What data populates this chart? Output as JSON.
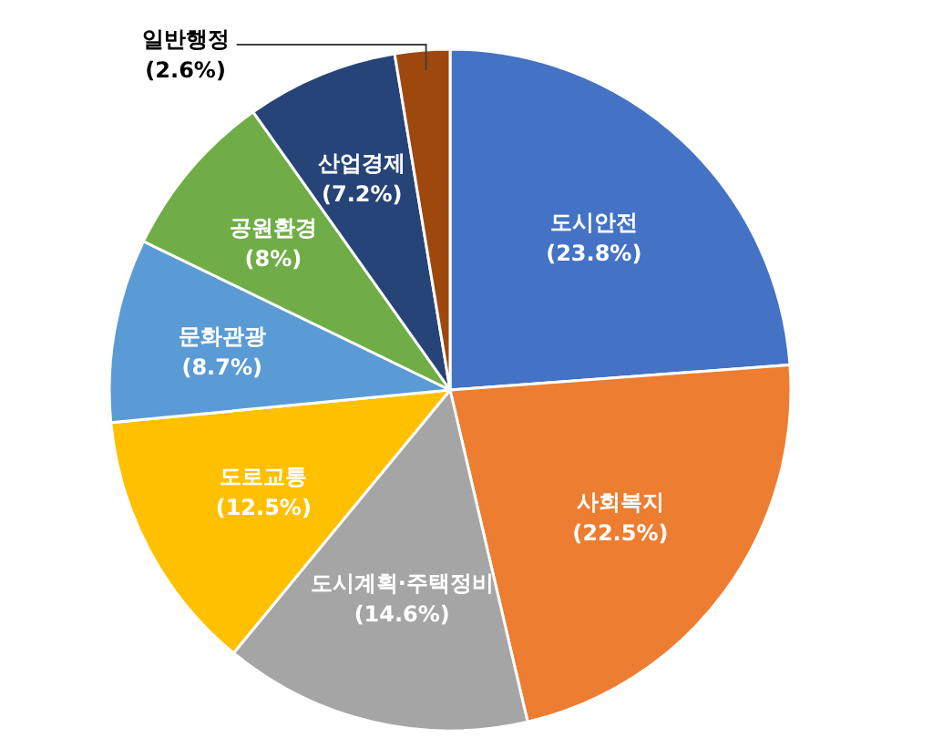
{
  "chart_data": {
    "type": "pie",
    "categories": [
      "도시안전",
      "사회복지",
      "도시계획·주택정비",
      "도로교통",
      "문화관광",
      "공원환경",
      "산업경제",
      "일반행정"
    ],
    "values": [
      23.8,
      22.5,
      14.6,
      12.5,
      8.7,
      8,
      7.2,
      2.6
    ],
    "colors": [
      "#4472c4",
      "#ed7d31",
      "#a5a5a5",
      "#ffc000",
      "#5b9bd5",
      "#70ad47",
      "#264478",
      "#9e480e"
    ],
    "value_labels": [
      "(23.8%)",
      "(22.5%)",
      "(14.6%)",
      "(12.5%)",
      "(8.7%)",
      "(8%)",
      "(7.2%)",
      "(2.6%)"
    ]
  }
}
